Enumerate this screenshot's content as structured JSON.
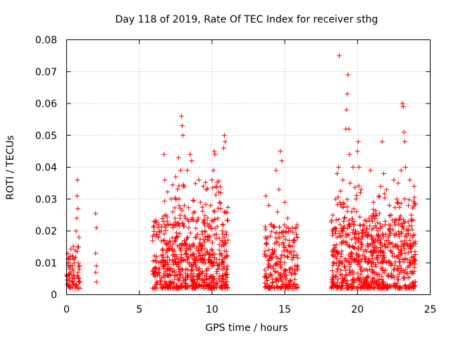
{
  "chart_data": {
    "type": "scatter",
    "title": "Day 118 of 2019, Rate Of TEC Index for receiver sthg",
    "xlabel": "GPS time / hours",
    "ylabel": "ROTI / TECUs",
    "xlim": [
      0,
      25
    ],
    "ylim": [
      0,
      0.08
    ],
    "grid": true,
    "marker": "plus",
    "marker_color": "#ff0000",
    "x_ticks": [
      0,
      5,
      10,
      15,
      20,
      25
    ],
    "x_tick_labels": [
      "0",
      "5",
      "10",
      "15",
      "20",
      "25"
    ],
    "y_ticks": [
      0,
      0.01,
      0.02,
      0.03,
      0.04,
      0.05,
      0.06,
      0.07,
      0.08
    ],
    "y_tick_labels": [
      "0",
      "0.01",
      "0.02",
      "0.03",
      "0.04",
      "0.05",
      "0.06",
      "0.07",
      "0.08"
    ],
    "series": [
      {
        "name": "ROTI",
        "points": [
          [
            0.05,
            0.006
          ],
          [
            0.1,
            0.01
          ],
          [
            0.15,
            0.005
          ],
          [
            0.2,
            0.008
          ],
          [
            0.25,
            0.012
          ],
          [
            0.3,
            0.007
          ],
          [
            0.35,
            0.004
          ],
          [
            0.4,
            0.009
          ],
          [
            0.45,
            0.006
          ],
          [
            0.5,
            0.011
          ],
          [
            0.55,
            0.005
          ],
          [
            0.6,
            0.014
          ],
          [
            0.65,
            0.02
          ],
          [
            0.7,
            0.024
          ],
          [
            0.72,
            0.031
          ],
          [
            0.75,
            0.036
          ],
          [
            0.78,
            0.027
          ],
          [
            0.8,
            0.01
          ],
          [
            0.82,
            0.005
          ],
          [
            0.85,
            0.018
          ],
          [
            0.88,
            0.008
          ],
          [
            0.9,
            0.004
          ],
          [
            2.0,
            0.0255
          ],
          [
            2.05,
            0.021
          ],
          [
            2.0,
            0.013
          ],
          [
            2.05,
            0.009
          ],
          [
            2.0,
            0.007
          ],
          [
            2.05,
            0.004
          ],
          [
            6.0,
            0.023
          ],
          [
            6.1,
            0.008
          ],
          [
            6.2,
            0.012
          ],
          [
            6.3,
            0.018
          ],
          [
            6.4,
            0.006
          ],
          [
            6.5,
            0.02
          ],
          [
            6.6,
            0.014
          ],
          [
            6.7,
            0.044
          ],
          [
            6.75,
            0.036
          ],
          [
            6.8,
            0.01
          ],
          [
            6.9,
            0.016
          ],
          [
            7.0,
            0.022
          ],
          [
            7.1,
            0.008
          ],
          [
            7.2,
            0.03
          ],
          [
            7.3,
            0.026
          ],
          [
            7.4,
            0.012
          ],
          [
            7.5,
            0.037
          ],
          [
            7.6,
            0.018
          ],
          [
            7.7,
            0.043
          ],
          [
            7.8,
            0.024
          ],
          [
            7.85,
            0.039
          ],
          [
            7.9,
            0.056
          ],
          [
            7.95,
            0.053
          ],
          [
            8.0,
            0.05
          ],
          [
            8.05,
            0.034
          ],
          [
            8.1,
            0.028
          ],
          [
            8.2,
            0.013
          ],
          [
            8.3,
            0.039
          ],
          [
            8.4,
            0.021
          ],
          [
            8.5,
            0.044
          ],
          [
            8.6,
            0.042
          ],
          [
            8.7,
            0.016
          ],
          [
            8.8,
            0.026
          ],
          [
            8.9,
            0.008
          ],
          [
            9.0,
            0.019
          ],
          [
            9.1,
            0.036
          ],
          [
            9.2,
            0.029
          ],
          [
            9.3,
            0.014
          ],
          [
            9.4,
            0.034
          ],
          [
            9.5,
            0.02
          ],
          [
            9.6,
            0.033
          ],
          [
            9.7,
            0.024
          ],
          [
            9.8,
            0.011
          ],
          [
            9.9,
            0.028
          ],
          [
            10.0,
            0.036
          ],
          [
            10.1,
            0.039
          ],
          [
            10.15,
            0.045
          ],
          [
            10.2,
            0.044
          ],
          [
            10.3,
            0.019
          ],
          [
            10.4,
            0.024
          ],
          [
            10.5,
            0.014
          ],
          [
            10.6,
            0.032
          ],
          [
            10.7,
            0.02
          ],
          [
            10.8,
            0.046
          ],
          [
            10.85,
            0.05
          ],
          [
            10.9,
            0.048
          ],
          [
            10.95,
            0.026
          ],
          [
            11.0,
            0.012
          ],
          [
            11.05,
            0.008
          ],
          [
            13.7,
            0.031
          ],
          [
            13.8,
            0.018
          ],
          [
            13.9,
            0.028
          ],
          [
            14.0,
            0.012
          ],
          [
            14.1,
            0.022
          ],
          [
            14.2,
            0.009
          ],
          [
            14.3,
            0.016
          ],
          [
            14.4,
            0.039
          ],
          [
            14.5,
            0.026
          ],
          [
            14.6,
            0.033
          ],
          [
            14.7,
            0.045
          ],
          [
            14.8,
            0.042
          ],
          [
            14.9,
            0.02
          ],
          [
            15.0,
            0.029
          ],
          [
            15.1,
            0.014
          ],
          [
            15.2,
            0.024
          ],
          [
            15.3,
            0.017
          ],
          [
            15.4,
            0.02
          ],
          [
            15.5,
            0.011
          ],
          [
            15.6,
            0.017
          ],
          [
            15.7,
            0.009
          ],
          [
            15.8,
            0.019
          ],
          [
            18.3,
            0.025
          ],
          [
            18.4,
            0.014
          ],
          [
            18.5,
            0.03
          ],
          [
            18.6,
            0.038
          ],
          [
            18.7,
            0.04
          ],
          [
            18.75,
            0.075
          ],
          [
            18.8,
            0.022
          ],
          [
            18.9,
            0.016
          ],
          [
            19.0,
            0.036
          ],
          [
            19.1,
            0.024
          ],
          [
            19.2,
            0.052
          ],
          [
            19.25,
            0.058
          ],
          [
            19.3,
            0.063
          ],
          [
            19.35,
            0.069
          ],
          [
            19.4,
            0.052
          ],
          [
            19.45,
            0.044
          ],
          [
            19.5,
            0.035
          ],
          [
            19.6,
            0.026
          ],
          [
            19.7,
            0.04
          ],
          [
            19.8,
            0.018
          ],
          [
            19.9,
            0.03
          ],
          [
            20.0,
            0.045
          ],
          [
            20.05,
            0.048
          ],
          [
            20.1,
            0.04
          ],
          [
            20.2,
            0.032
          ],
          [
            20.3,
            0.015
          ],
          [
            20.4,
            0.022
          ],
          [
            20.5,
            0.012
          ],
          [
            20.6,
            0.008
          ],
          [
            20.7,
            0.016
          ],
          [
            20.8,
            0.024
          ],
          [
            20.9,
            0.039
          ],
          [
            21.0,
            0.018
          ],
          [
            21.1,
            0.029
          ],
          [
            21.2,
            0.014
          ],
          [
            21.3,
            0.025
          ],
          [
            21.4,
            0.02
          ],
          [
            21.5,
            0.031
          ],
          [
            21.6,
            0.034
          ],
          [
            21.7,
            0.048
          ],
          [
            21.8,
            0.038
          ],
          [
            21.9,
            0.022
          ],
          [
            22.0,
            0.033
          ],
          [
            22.1,
            0.017
          ],
          [
            22.2,
            0.028
          ],
          [
            22.3,
            0.025
          ],
          [
            22.4,
            0.013
          ],
          [
            22.5,
            0.036
          ],
          [
            22.6,
            0.019
          ],
          [
            22.7,
            0.03
          ],
          [
            22.8,
            0.035
          ],
          [
            22.9,
            0.024
          ],
          [
            23.0,
            0.039
          ],
          [
            23.1,
            0.06
          ],
          [
            23.15,
            0.059
          ],
          [
            23.2,
            0.051
          ],
          [
            23.25,
            0.048
          ],
          [
            23.3,
            0.04
          ],
          [
            23.4,
            0.02
          ],
          [
            23.5,
            0.028
          ],
          [
            23.6,
            0.036
          ],
          [
            23.7,
            0.025
          ],
          [
            23.8,
            0.018
          ],
          [
            23.9,
            0.034
          ],
          [
            24.0,
            0.016
          ]
        ]
      }
    ],
    "noise_clusters": [
      {
        "x": [
          0.0,
          0.95
        ],
        "y": [
          0.002,
          0.016
        ],
        "n": 60
      },
      {
        "x": [
          5.9,
          11.1
        ],
        "y": [
          0.002,
          0.024
        ],
        "n": 520
      },
      {
        "x": [
          6.5,
          11.1
        ],
        "y": [
          0.01,
          0.036
        ],
        "n": 160
      },
      {
        "x": [
          13.6,
          15.9
        ],
        "y": [
          0.002,
          0.022
        ],
        "n": 220
      },
      {
        "x": [
          18.2,
          24.0
        ],
        "y": [
          0.002,
          0.024
        ],
        "n": 560
      },
      {
        "x": [
          18.5,
          24.0
        ],
        "y": [
          0.01,
          0.035
        ],
        "n": 200
      }
    ]
  }
}
